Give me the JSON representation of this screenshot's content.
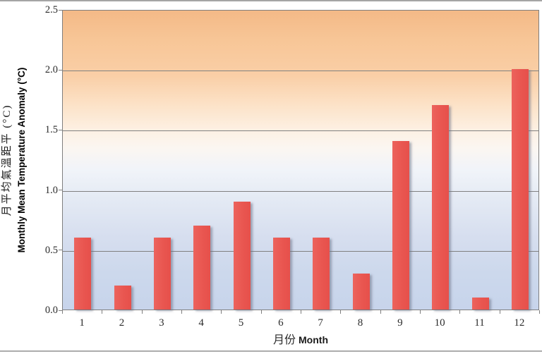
{
  "chart_data": {
    "type": "bar",
    "title": "",
    "categories": [
      "1",
      "2",
      "3",
      "4",
      "5",
      "6",
      "7",
      "8",
      "9",
      "10",
      "11",
      "12"
    ],
    "values": [
      0.6,
      0.2,
      0.6,
      0.7,
      0.9,
      0.6,
      0.6,
      0.3,
      1.4,
      1.7,
      0.1,
      2.0
    ],
    "xlabel_zh": "月份",
    "xlabel_en": "Month",
    "ylabel_zh": "月平均氣溫距平 (°C)",
    "ylabel_en": "Monthly Mean Temperature Anomaly (°C)",
    "ylim": [
      0,
      2.5
    ],
    "ytick_interval": 0.5,
    "ytick_labels": [
      "0.0",
      "0.5",
      "1.0",
      "1.5",
      "2.0",
      "2.5"
    ],
    "grid": "horizontal-major",
    "legend": "none",
    "bar_color": "#E95A55",
    "gridline_color": "#808080",
    "axis_color": "#7F7F7F",
    "plot_bg_gradient_top": "#F4B987",
    "plot_bg_gradient_middle": "#FBF6F1",
    "plot_bg_gradient_bottom": "#C7D4EB"
  }
}
